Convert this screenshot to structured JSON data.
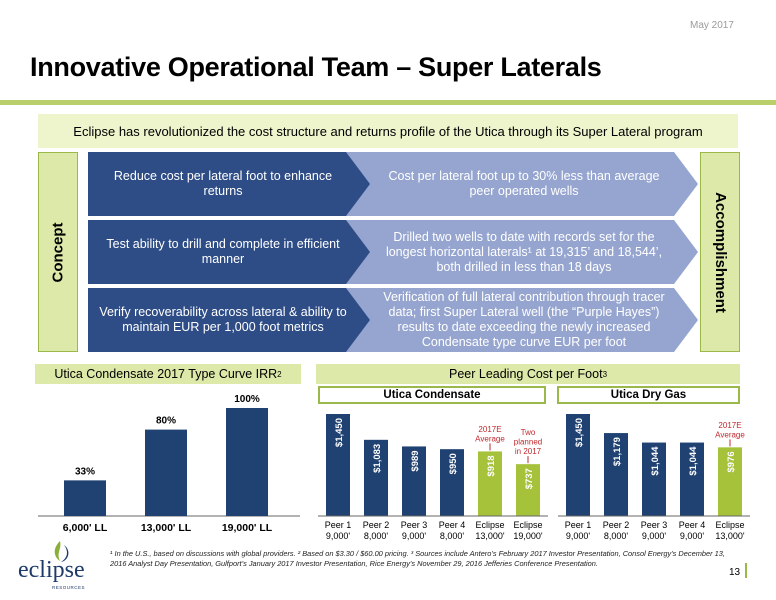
{
  "header": {
    "date": "May 2017",
    "title": "Innovative Operational Team – Super Laterals"
  },
  "banner": "Eclipse has revolutionized the cost structure and returns profile of the Utica through its Super Lateral program",
  "side_tabs": {
    "left": "Concept",
    "right": "Accomplishment"
  },
  "rows": [
    {
      "concept": "Reduce cost per lateral foot to enhance returns",
      "accomplishment": "Cost per lateral foot up to 30% less than average peer operated wells"
    },
    {
      "concept": "Test ability to drill and complete in efficient manner",
      "accomplishment": "Drilled two wells to date with records set for the longest horizontal laterals¹ at 19,315’ and 18,544’, both drilled in less than 18 days"
    },
    {
      "concept": "Verify recoverability across lateral & ability to maintain EUR per 1,000 foot metrics",
      "accomplishment": "Verification of full lateral contribution through tracer data; first Super Lateral well (the “Purple Hayes”) results to date exceeding the newly increased Condensate type curve EUR per foot"
    }
  ],
  "irr_heading": {
    "text": "Utica Condensate 2017 Type Curve IRR",
    "sup": "2"
  },
  "cost_heading": {
    "text": "Peer Leading Cost per Foot",
    "sup": "3"
  },
  "segment_headers": {
    "condensate": "Utica Condensate",
    "drygas": "Utica Dry Gas"
  },
  "colors": {
    "navy": "#1f4272",
    "green": "#a6c13a",
    "annotation_red": "#c0282d",
    "light_green": "#dde9a8"
  },
  "chart_data": [
    {
      "type": "bar",
      "title": "Utica Condensate 2017 Type Curve IRR",
      "categories": [
        "6,000' LL",
        "13,000' LL",
        "19,000' LL"
      ],
      "values": [
        33,
        80,
        100
      ],
      "value_labels": [
        "33%",
        "80%",
        "100%"
      ],
      "ylim": [
        0,
        100
      ]
    },
    {
      "type": "bar",
      "title": "Utica Condensate",
      "categories": [
        "Peer 1",
        "Peer 2",
        "Peer 3",
        "Peer 4",
        "Eclipse",
        "Eclipse"
      ],
      "sublabels": [
        "9,000'",
        "8,000'",
        "9,000'",
        "8,000'",
        "13,000'",
        "19,000'"
      ],
      "values": [
        1450,
        1083,
        989,
        950,
        918,
        737
      ],
      "value_labels": [
        "$1,450",
        "$1,083",
        "$989",
        "$950",
        "$918",
        "$737"
      ],
      "highlight": [
        false,
        false,
        false,
        false,
        true,
        true
      ],
      "annotations": [
        {
          "bar": 4,
          "text": [
            "2017E",
            "Average"
          ]
        },
        {
          "bar": 5,
          "text": [
            "Two",
            "planned",
            "in 2017"
          ]
        }
      ]
    },
    {
      "type": "bar",
      "title": "Utica Dry Gas",
      "categories": [
        "Peer 1",
        "Peer 2",
        "Peer 3",
        "Peer 4",
        "Eclipse"
      ],
      "sublabels": [
        "9,000'",
        "8,000'",
        "9,000'",
        "9,000'",
        "13,000'"
      ],
      "values": [
        1450,
        1179,
        1044,
        1044,
        976
      ],
      "value_labels": [
        "$1,450",
        "$1,179",
        "$1,044",
        "$1,044",
        "$976"
      ],
      "highlight": [
        false,
        false,
        false,
        false,
        true
      ],
      "annotations": [
        {
          "bar": 4,
          "text": [
            "2017E",
            "Average"
          ]
        }
      ]
    }
  ],
  "footnote": "¹ In the U.S., based on discussions with global providers.  ² Based on $3.30 / $60.00 pricing.  ³ Sources include Antero’s February 2017 Investor Presentation, Consol Energy’s December 13, 2016 Analyst Day Presentation, Gulfport’s January 2017 Investor Presentation, Rice Energy’s November 29, 2016 Jefferies Conference Presentation.",
  "page_number": "13",
  "logo": {
    "name": "eclipse",
    "sub": "RESOURCES"
  }
}
